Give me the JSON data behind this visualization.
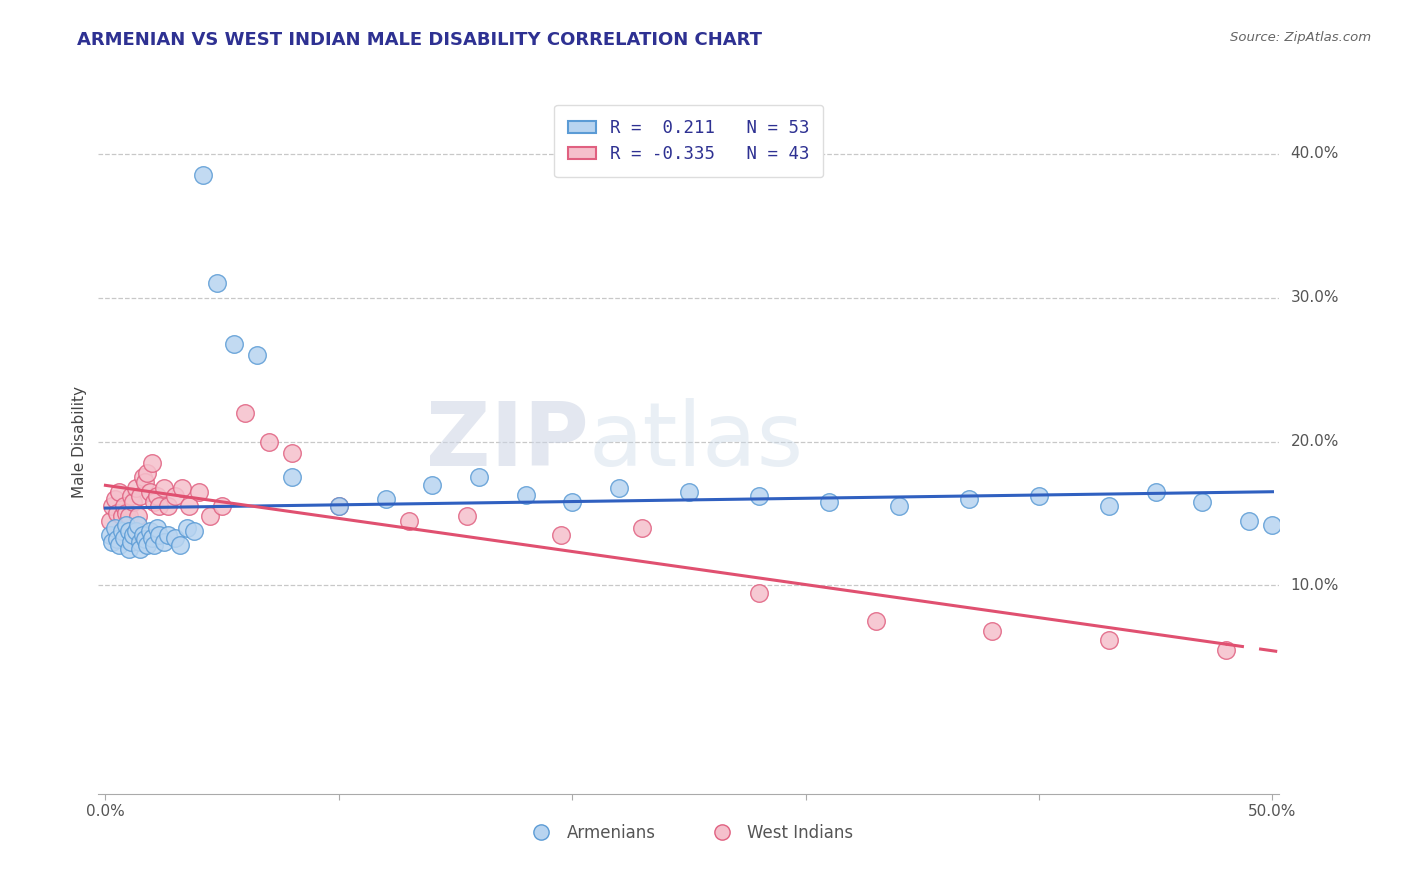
{
  "title": "ARMENIAN VS WEST INDIAN MALE DISABILITY CORRELATION CHART",
  "source": "Source: ZipAtlas.com",
  "ylabel": "Male Disability",
  "xlim": [
    -0.003,
    0.503
  ],
  "ylim": [
    -0.045,
    0.445
  ],
  "background_color": "#ffffff",
  "title_color": "#2e3192",
  "title_fontsize": 13,
  "grid_color": "#c8c8c8",
  "armenian_fill": "#b8d4f0",
  "armenian_edge": "#5b9bd5",
  "west_indian_fill": "#f5c0cc",
  "west_indian_edge": "#e06080",
  "armenian_line_color": "#3060c0",
  "west_indian_line_color": "#e05070",
  "armenian_x": [
    0.002,
    0.003,
    0.004,
    0.005,
    0.006,
    0.007,
    0.008,
    0.009,
    0.01,
    0.01,
    0.011,
    0.012,
    0.013,
    0.014,
    0.015,
    0.015,
    0.016,
    0.017,
    0.018,
    0.019,
    0.02,
    0.021,
    0.022,
    0.023,
    0.025,
    0.027,
    0.03,
    0.032,
    0.035,
    0.038,
    0.042,
    0.048,
    0.055,
    0.065,
    0.08,
    0.1,
    0.12,
    0.14,
    0.16,
    0.18,
    0.2,
    0.22,
    0.25,
    0.28,
    0.31,
    0.34,
    0.37,
    0.4,
    0.43,
    0.45,
    0.47,
    0.49,
    0.5
  ],
  "armenian_y": [
    0.135,
    0.13,
    0.14,
    0.132,
    0.128,
    0.138,
    0.133,
    0.142,
    0.138,
    0.125,
    0.13,
    0.135,
    0.138,
    0.142,
    0.13,
    0.125,
    0.135,
    0.132,
    0.128,
    0.138,
    0.133,
    0.128,
    0.14,
    0.135,
    0.13,
    0.135,
    0.133,
    0.128,
    0.14,
    0.138,
    0.385,
    0.31,
    0.268,
    0.26,
    0.175,
    0.155,
    0.16,
    0.17,
    0.175,
    0.163,
    0.158,
    0.168,
    0.165,
    0.162,
    0.158,
    0.155,
    0.16,
    0.162,
    0.155,
    0.165,
    0.158,
    0.145,
    0.142
  ],
  "west_indian_x": [
    0.002,
    0.003,
    0.004,
    0.005,
    0.006,
    0.007,
    0.008,
    0.009,
    0.01,
    0.011,
    0.012,
    0.013,
    0.014,
    0.015,
    0.016,
    0.017,
    0.018,
    0.019,
    0.02,
    0.021,
    0.022,
    0.023,
    0.025,
    0.027,
    0.03,
    0.033,
    0.036,
    0.04,
    0.045,
    0.05,
    0.06,
    0.07,
    0.08,
    0.1,
    0.13,
    0.155,
    0.195,
    0.23,
    0.28,
    0.33,
    0.38,
    0.43,
    0.48
  ],
  "west_indian_y": [
    0.145,
    0.155,
    0.16,
    0.15,
    0.165,
    0.148,
    0.155,
    0.15,
    0.148,
    0.162,
    0.158,
    0.168,
    0.148,
    0.162,
    0.175,
    0.172,
    0.178,
    0.165,
    0.185,
    0.158,
    0.162,
    0.155,
    0.168,
    0.155,
    0.162,
    0.168,
    0.155,
    0.165,
    0.148,
    0.155,
    0.22,
    0.2,
    0.192,
    0.155,
    0.145,
    0.148,
    0.135,
    0.14,
    0.095,
    0.075,
    0.068,
    0.062,
    0.055
  ],
  "legend_labels": [
    "Armenians",
    "West Indians"
  ],
  "watermark_zip": "ZIP",
  "watermark_atlas": "atlas"
}
